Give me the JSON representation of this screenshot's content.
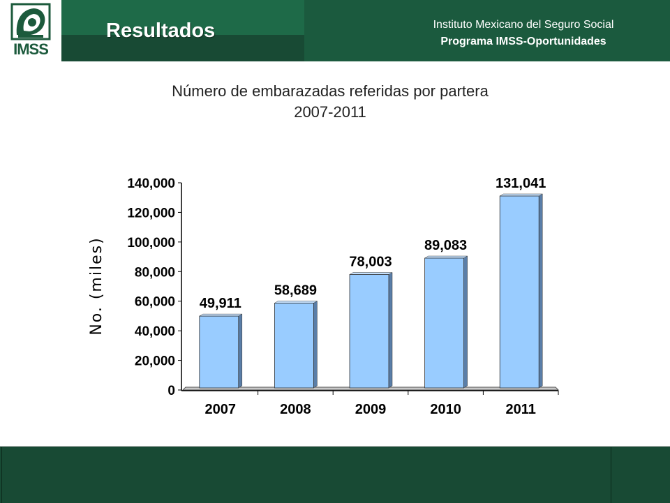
{
  "header": {
    "logo_text": "IMSS",
    "section_title": "Resultados",
    "org_name": "Instituto Mexicano del Seguro Social",
    "program_name": "Programa IMSS-Oportunidades"
  },
  "chart_data": {
    "type": "bar",
    "title_line1": "Número de embarazadas referidas por partera",
    "title_line2": "2007-2011",
    "categories": [
      "2007",
      "2008",
      "2009",
      "2010",
      "2011"
    ],
    "values": [
      49911,
      58689,
      78003,
      89083,
      131041
    ],
    "value_labels": [
      "49,911",
      "58,689",
      "78,003",
      "89,083",
      "131,041"
    ],
    "ylabel": "No. (miles)",
    "xlabel": "",
    "ylim": [
      0,
      140000
    ],
    "yticks": [
      0,
      20000,
      40000,
      60000,
      80000,
      100000,
      120000,
      140000
    ],
    "ytick_labels": [
      "0",
      "20,000",
      "40,000",
      "60,000",
      "80,000",
      "100,000",
      "120,000",
      "140,000"
    ],
    "bar_color": "#99ccff",
    "grid": false,
    "legend": "none"
  }
}
